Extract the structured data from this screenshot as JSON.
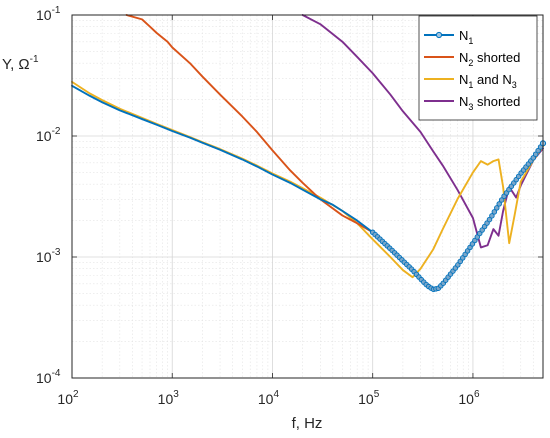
{
  "chart_data": {
    "type": "line",
    "title": "",
    "xlabel": "f, Hz",
    "ylabel": "Y, Ω",
    "ylabel_exponent": "-1",
    "xscale": "log",
    "yscale": "log",
    "xlim": [
      100,
      5000000
    ],
    "ylim": [
      0.0001,
      0.1
    ],
    "grid": true,
    "legend_position": "top-right",
    "x_ticks": [
      {
        "base": "10",
        "exp": "2",
        "value": 100
      },
      {
        "base": "10",
        "exp": "3",
        "value": 1000
      },
      {
        "base": "10",
        "exp": "4",
        "value": 10000
      },
      {
        "base": "10",
        "exp": "5",
        "value": 100000
      },
      {
        "base": "10",
        "exp": "6",
        "value": 1000000
      }
    ],
    "y_ticks": [
      {
        "base": "10",
        "exp": "-4",
        "value": 0.0001
      },
      {
        "base": "10",
        "exp": "-3",
        "value": 0.001
      },
      {
        "base": "10",
        "exp": "-2",
        "value": 0.01
      },
      {
        "base": "10",
        "exp": "-1",
        "value": 0.1
      }
    ],
    "series": [
      {
        "legend_parts": [
          {
            "t": "N"
          },
          {
            "t": "1",
            "sub": true
          }
        ],
        "color": "#0072BD",
        "marker": "circle",
        "points": [
          [
            100,
            0.026
          ],
          [
            150,
            0.0215
          ],
          [
            200,
            0.019
          ],
          [
            300,
            0.0163
          ],
          [
            500,
            0.0138
          ],
          [
            700,
            0.0124
          ],
          [
            1000,
            0.011
          ],
          [
            1500,
            0.0097
          ],
          [
            2000,
            0.0088
          ],
          [
            3000,
            0.0077
          ],
          [
            5000,
            0.0064
          ],
          [
            7000,
            0.0056
          ],
          [
            10000,
            0.0048
          ],
          [
            15000,
            0.0041
          ],
          [
            20000,
            0.0036
          ],
          [
            30000,
            0.003
          ],
          [
            40000,
            0.0027
          ],
          [
            50000,
            0.0024
          ],
          [
            70000,
            0.002
          ],
          [
            100000,
            0.0016
          ],
          [
            150000,
            0.00117
          ],
          [
            200000,
            0.00093
          ],
          [
            250000,
            0.00078
          ],
          [
            300000,
            0.00066
          ],
          [
            350000,
            0.00058
          ],
          [
            400000,
            0.00054
          ],
          [
            450000,
            0.00055
          ],
          [
            500000,
            0.0006
          ],
          [
            700000,
            0.00085
          ],
          [
            1000000,
            0.0013
          ],
          [
            1500000,
            0.0021
          ],
          [
            2000000,
            0.0031
          ],
          [
            3000000,
            0.0049
          ],
          [
            4000000,
            0.0066
          ],
          [
            5000000,
            0.0087
          ]
        ]
      },
      {
        "legend_parts": [
          {
            "t": "N"
          },
          {
            "t": "2",
            "sub": true
          },
          {
            "t": " shorted"
          }
        ],
        "color": "#D95319",
        "marker": "none",
        "points": [
          [
            350,
            0.1
          ],
          [
            500,
            0.092
          ],
          [
            600,
            0.08
          ],
          [
            700,
            0.071
          ],
          [
            900,
            0.06
          ],
          [
            1000,
            0.054
          ],
          [
            1500,
            0.04
          ],
          [
            2000,
            0.031
          ],
          [
            3000,
            0.022
          ],
          [
            5000,
            0.0145
          ],
          [
            7000,
            0.0108
          ],
          [
            10000,
            0.0076
          ],
          [
            15000,
            0.0052
          ],
          [
            20000,
            0.0041
          ],
          [
            30000,
            0.003
          ],
          [
            50000,
            0.0022
          ],
          [
            70000,
            0.0019
          ],
          [
            100000,
            0.0016
          ],
          [
            150000,
            0.00117
          ],
          [
            200000,
            0.00093
          ],
          [
            250000,
            0.00078
          ],
          [
            300000,
            0.00066
          ],
          [
            350000,
            0.00058
          ],
          [
            400000,
            0.00054
          ],
          [
            450000,
            0.00055
          ],
          [
            500000,
            0.0006
          ],
          [
            700000,
            0.00085
          ],
          [
            1000000,
            0.0013
          ],
          [
            1500000,
            0.0021
          ],
          [
            2000000,
            0.0031
          ],
          [
            3000000,
            0.0049
          ],
          [
            4000000,
            0.0066
          ],
          [
            5000000,
            0.0085
          ]
        ]
      },
      {
        "legend_parts": [
          {
            "t": "N"
          },
          {
            "t": "1",
            "sub": true
          },
          {
            "t": " and N"
          },
          {
            "t": "3",
            "sub": true
          }
        ],
        "color": "#EDB120",
        "marker": "none",
        "points": [
          [
            100,
            0.028
          ],
          [
            150,
            0.0225
          ],
          [
            200,
            0.0198
          ],
          [
            300,
            0.0168
          ],
          [
            500,
            0.0141
          ],
          [
            700,
            0.0126
          ],
          [
            1000,
            0.0112
          ],
          [
            1500,
            0.0098
          ],
          [
            2000,
            0.0089
          ],
          [
            3000,
            0.0078
          ],
          [
            5000,
            0.0065
          ],
          [
            7000,
            0.0057
          ],
          [
            10000,
            0.0049
          ],
          [
            15000,
            0.0042
          ],
          [
            20000,
            0.0037
          ],
          [
            30000,
            0.0031
          ],
          [
            50000,
            0.0024
          ],
          [
            70000,
            0.0019
          ],
          [
            100000,
            0.0014
          ],
          [
            150000,
            0.001
          ],
          [
            200000,
            0.00078
          ],
          [
            250000,
            0.00068
          ],
          [
            300000,
            0.0008
          ],
          [
            400000,
            0.00115
          ],
          [
            500000,
            0.0017
          ],
          [
            700000,
            0.003
          ],
          [
            1000000,
            0.005
          ],
          [
            1200000,
            0.0062
          ],
          [
            1400000,
            0.0058
          ],
          [
            1600000,
            0.0062
          ],
          [
            1800000,
            0.0064
          ],
          [
            2000000,
            0.0038
          ],
          [
            2300000,
            0.0013
          ],
          [
            2600000,
            0.0022
          ],
          [
            3000000,
            0.0042
          ],
          [
            4000000,
            0.0063
          ],
          [
            5000000,
            0.0082
          ]
        ]
      },
      {
        "legend_parts": [
          {
            "t": "N"
          },
          {
            "t": "3",
            "sub": true
          },
          {
            "t": " shorted"
          }
        ],
        "color": "#7E2F8E",
        "marker": "none",
        "points": [
          [
            20000,
            0.1
          ],
          [
            30000,
            0.084
          ],
          [
            50000,
            0.06
          ],
          [
            70000,
            0.045
          ],
          [
            100000,
            0.033
          ],
          [
            150000,
            0.022
          ],
          [
            200000,
            0.016
          ],
          [
            300000,
            0.0108
          ],
          [
            400000,
            0.0075
          ],
          [
            500000,
            0.0057
          ],
          [
            700000,
            0.0036
          ],
          [
            1000000,
            0.0021
          ],
          [
            1200000,
            0.0012
          ],
          [
            1400000,
            0.00125
          ],
          [
            1600000,
            0.0017
          ],
          [
            1800000,
            0.0015
          ],
          [
            2000000,
            0.0024
          ],
          [
            2300000,
            0.0038
          ],
          [
            2700000,
            0.0031
          ],
          [
            3000000,
            0.0039
          ],
          [
            4000000,
            0.0063
          ],
          [
            5000000,
            0.0079
          ]
        ]
      }
    ]
  }
}
